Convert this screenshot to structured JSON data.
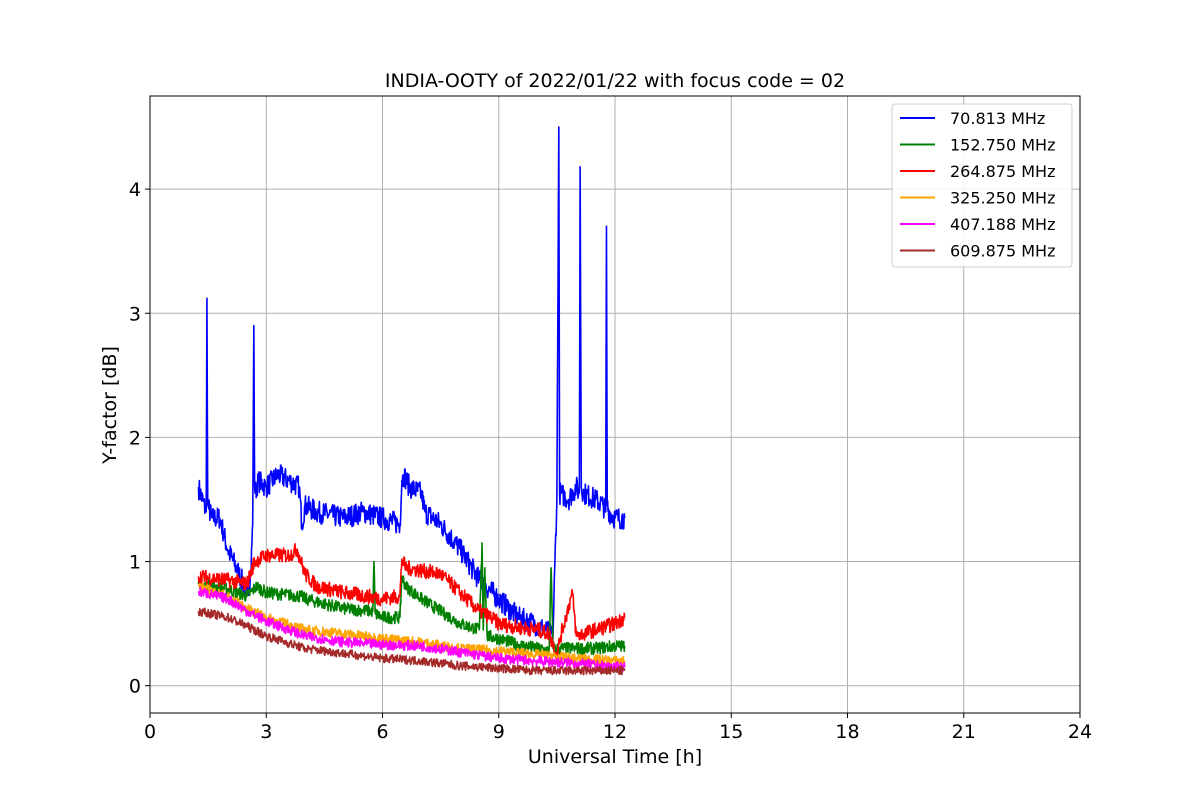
{
  "chart_data": {
    "type": "line",
    "title": "INDIA-OOTY of 2022/01/22 with focus code = 02",
    "xlabel": "Universal Time [h]",
    "ylabel": "Y-factor [dB]",
    "xlim": [
      0,
      24
    ],
    "ylim": [
      -0.22,
      4.75
    ],
    "xticks": [
      0,
      3,
      6,
      9,
      12,
      15,
      18,
      21,
      24
    ],
    "xtick_labels": [
      "0",
      "3",
      "6",
      "9",
      "12",
      "15",
      "18",
      "21",
      "24"
    ],
    "yticks": [
      0,
      1,
      2,
      3,
      4
    ],
    "ytick_labels": [
      "0",
      "1",
      "2",
      "3",
      "4"
    ],
    "grid": true,
    "legend_position": "top-right",
    "series": [
      {
        "name": " 70.813 MHz",
        "color": "#0000ff",
        "noise": 0.09,
        "x": [
          1.25,
          1.45,
          1.47,
          1.49,
          1.6,
          1.8,
          2.0,
          2.3,
          2.5,
          2.6,
          2.65,
          2.68,
          2.7,
          2.72,
          2.75,
          2.8,
          3.0,
          3.3,
          3.6,
          3.85,
          3.92,
          4.0,
          4.3,
          5.0,
          5.5,
          6.0,
          6.45,
          6.5,
          6.55,
          6.7,
          7.0,
          7.1,
          7.5,
          8.0,
          8.5,
          9.0,
          9.5,
          9.9,
          10.2,
          10.4,
          10.45,
          10.5,
          10.55,
          10.57,
          10.6,
          10.8,
          11.0,
          11.08,
          11.1,
          11.13,
          11.2,
          11.5,
          11.7,
          11.76,
          11.78,
          11.8,
          11.85,
          12.0,
          12.25
        ],
        "y": [
          1.6,
          1.4,
          3.12,
          1.45,
          1.35,
          1.35,
          1.1,
          0.9,
          0.75,
          0.9,
          1.3,
          2.9,
          1.6,
          1.55,
          1.6,
          1.65,
          1.6,
          1.7,
          1.65,
          1.6,
          1.3,
          1.45,
          1.4,
          1.35,
          1.4,
          1.35,
          1.3,
          1.65,
          1.7,
          1.6,
          1.55,
          1.4,
          1.3,
          1.1,
          0.85,
          0.7,
          0.55,
          0.5,
          0.45,
          0.4,
          1.0,
          1.5,
          4.5,
          1.55,
          1.55,
          1.5,
          1.6,
          1.55,
          4.18,
          1.6,
          1.55,
          1.5,
          1.45,
          1.4,
          3.7,
          1.45,
          1.4,
          1.35,
          1.35
        ]
      },
      {
        "name": "152.750 MHz",
        "color": "#008000",
        "noise": 0.05,
        "x": [
          1.25,
          2.0,
          2.5,
          2.75,
          3.0,
          3.9,
          4.0,
          5.0,
          5.75,
          5.78,
          5.81,
          6.0,
          6.45,
          6.5,
          6.6,
          7.0,
          7.5,
          8.0,
          8.5,
          8.57,
          8.6,
          8.64,
          8.7,
          9.0,
          9.5,
          10.0,
          10.3,
          10.35,
          10.4,
          10.5,
          11.0,
          11.5,
          12.0,
          12.25
        ],
        "y": [
          0.82,
          0.78,
          0.72,
          0.8,
          0.75,
          0.72,
          0.7,
          0.62,
          0.6,
          1.0,
          0.58,
          0.55,
          0.55,
          0.88,
          0.8,
          0.7,
          0.6,
          0.5,
          0.45,
          1.15,
          0.45,
          0.95,
          0.4,
          0.38,
          0.33,
          0.3,
          0.28,
          0.95,
          0.3,
          0.3,
          0.3,
          0.3,
          0.32,
          0.32
        ]
      },
      {
        "name": "264.875 MHz",
        "color": "#ff0000",
        "noise": 0.06,
        "x": [
          1.25,
          2.0,
          2.5,
          2.7,
          3.0,
          3.6,
          3.8,
          4.0,
          4.3,
          5.0,
          6.0,
          6.45,
          6.5,
          6.6,
          7.5,
          8.0,
          8.5,
          8.8,
          9.0,
          9.5,
          10.0,
          10.3,
          10.5,
          10.6,
          10.9,
          11.0,
          11.5,
          12.0,
          12.25
        ],
        "y": [
          0.88,
          0.85,
          0.82,
          1.0,
          1.05,
          1.05,
          1.1,
          0.9,
          0.8,
          0.75,
          0.7,
          0.72,
          1.02,
          0.95,
          0.9,
          0.75,
          0.6,
          0.55,
          0.5,
          0.47,
          0.45,
          0.42,
          0.25,
          0.4,
          0.75,
          0.4,
          0.45,
          0.5,
          0.55
        ]
      },
      {
        "name": "325.250 MHz",
        "color": "#ffa500",
        "noise": 0.04,
        "x": [
          1.25,
          2.0,
          2.5,
          3.0,
          4.0,
          5.0,
          6.0,
          7.0,
          8.0,
          9.0,
          10.0,
          11.0,
          12.0,
          12.25
        ],
        "y": [
          0.8,
          0.72,
          0.62,
          0.55,
          0.45,
          0.42,
          0.38,
          0.35,
          0.3,
          0.28,
          0.25,
          0.22,
          0.2,
          0.2
        ]
      },
      {
        "name": "407.188 MHz",
        "color": "#ff00ff",
        "noise": 0.04,
        "x": [
          1.25,
          2.0,
          2.5,
          3.0,
          4.0,
          5.0,
          6.0,
          7.0,
          8.0,
          9.0,
          10.0,
          11.0,
          12.0,
          12.25
        ],
        "y": [
          0.76,
          0.7,
          0.6,
          0.52,
          0.4,
          0.35,
          0.33,
          0.32,
          0.27,
          0.22,
          0.2,
          0.18,
          0.15,
          0.15
        ]
      },
      {
        "name": "609.875 MHz",
        "color": "#a52a2a",
        "noise": 0.035,
        "x": [
          1.25,
          2.0,
          2.5,
          3.0,
          4.0,
          5.0,
          6.0,
          7.0,
          8.0,
          9.0,
          10.0,
          11.0,
          12.0,
          12.25
        ],
        "y": [
          0.6,
          0.55,
          0.48,
          0.4,
          0.3,
          0.26,
          0.22,
          0.2,
          0.16,
          0.14,
          0.12,
          0.12,
          0.12,
          0.12
        ]
      }
    ]
  }
}
